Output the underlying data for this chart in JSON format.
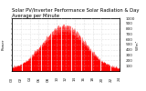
{
  "title": "Solar PV/Inverter Performance Solar Radiation & Day Average per Minute",
  "bg_color": "#ffffff",
  "plot_bg": "#ffffff",
  "grid_color": "#c0c0c0",
  "fill_color": "#ff0000",
  "line_color": "#dd0000",
  "ylabel_left": "Power",
  "ylabel_right": "W/m²",
  "ylim": [
    0,
    1000
  ],
  "xlim": [
    0,
    143
  ],
  "yticks": [
    100,
    200,
    300,
    400,
    500,
    600,
    700,
    800,
    900,
    1000
  ],
  "title_fontsize": 3.8,
  "axis_fontsize": 3.0,
  "num_days": 10,
  "num_points": 144
}
